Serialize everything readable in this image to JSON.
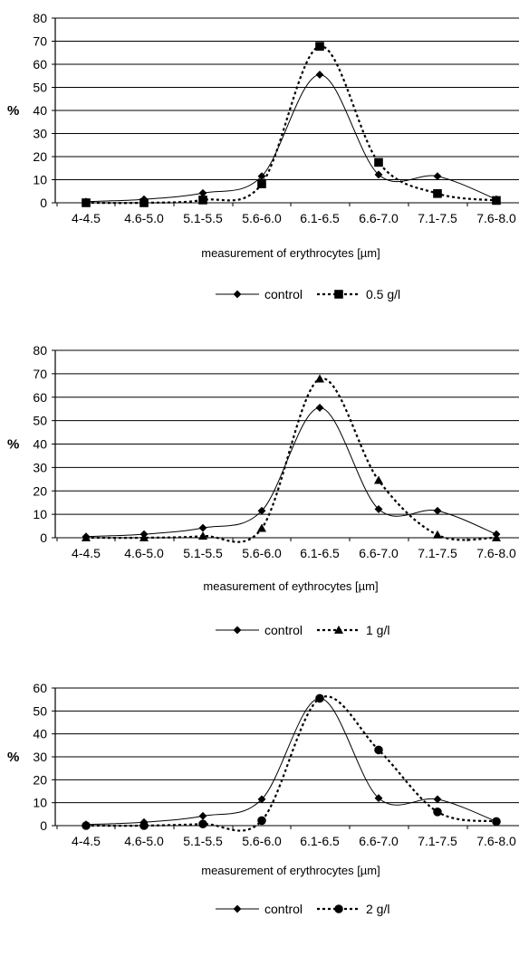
{
  "chart_data": [
    {
      "type": "line",
      "categories": [
        "4-4.5",
        "4.6-5.0",
        "5.1-5.5",
        "5.6-6.0",
        "6.1-6.5",
        "6.6-7.0",
        "7.1-7.5",
        "7.6-8.0"
      ],
      "ylabel": "%",
      "xlabel": "measurement of erythrocytes [µm]",
      "ylim": [
        0,
        80
      ],
      "yticks": [
        "0",
        "10",
        "20",
        "30",
        "40",
        "50",
        "60",
        "70",
        "80"
      ],
      "grid": true,
      "legend_position": "bottom-center",
      "series": [
        {
          "name": "control",
          "marker": "diamond",
          "line": "solid",
          "values": [
            0.5,
            1.5,
            4.2,
            11.5,
            55.5,
            12.2,
            11.5,
            1.5
          ]
        },
        {
          "name": "0.5 g/l",
          "marker": "square",
          "line": "dotted",
          "values": [
            0,
            0,
            1.2,
            8.2,
            67.8,
            17.5,
            4.0,
            1.0
          ]
        }
      ]
    },
    {
      "type": "line",
      "categories": [
        "4-4.5",
        "4.6-5.0",
        "5.1-5.5",
        "5.6-6.0",
        "6.1-6.5",
        "6.6-7.0",
        "7.1-7.5",
        "7.6-8.0"
      ],
      "ylabel": "%",
      "xlabel": "measurement of eythrocytes [µm]",
      "ylim": [
        0,
        80
      ],
      "yticks": [
        "0",
        "10",
        "20",
        "30",
        "40",
        "50",
        "60",
        "70",
        "80"
      ],
      "grid": true,
      "legend_position": "bottom-center",
      "series": [
        {
          "name": "control",
          "marker": "diamond",
          "line": "solid",
          "values": [
            0.5,
            1.5,
            4.2,
            11.5,
            55.5,
            12.2,
            11.5,
            1.5
          ]
        },
        {
          "name": "1 g/l",
          "marker": "triangle",
          "line": "dotted",
          "values": [
            0,
            0,
            0.7,
            4.0,
            67.8,
            24.5,
            1.2,
            0
          ]
        }
      ]
    },
    {
      "type": "line",
      "categories": [
        "4-4.5",
        "4.6-5.0",
        "5.1-5.5",
        "5.6-6.0",
        "6.1-6.5",
        "6.6-7.0",
        "7.1-7.5",
        "7.6-8.0"
      ],
      "ylabel": "%",
      "xlabel": "measurement of erythrocytes [µm]",
      "ylim": [
        0,
        60
      ],
      "yticks": [
        "0",
        "10",
        "20",
        "30",
        "40",
        "50",
        "60"
      ],
      "grid": true,
      "legend_position": "bottom-center",
      "series": [
        {
          "name": "control",
          "marker": "diamond",
          "line": "solid",
          "values": [
            0.5,
            1.5,
            4.2,
            11.5,
            55.5,
            12.0,
            11.5,
            1.8
          ]
        },
        {
          "name": "2 g/l",
          "marker": "circle",
          "line": "dotted",
          "values": [
            0,
            0,
            0.7,
            2.2,
            55.5,
            33.0,
            6.0,
            1.8
          ]
        }
      ]
    }
  ]
}
